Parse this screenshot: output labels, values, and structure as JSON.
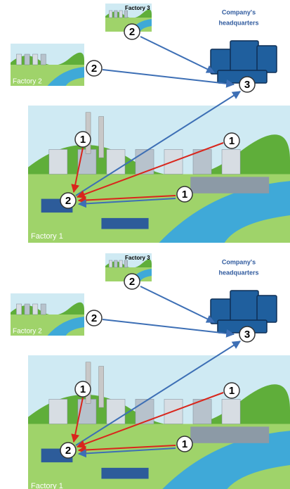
{
  "panels": [
    {
      "factory_3": "Factory 3",
      "headquarters": [
        "Company's",
        "headquarters"
      ],
      "factory_2": "Factory 2",
      "factory_1": "Factory 1",
      "markers": [
        "2",
        "3",
        "2",
        "1",
        "1",
        "1",
        "2"
      ]
    },
    {
      "factory_3": "Factory 3",
      "headquarters": [
        "Company's",
        "headquarters"
      ],
      "factory_2": "Factory 2",
      "factory_1": "Factory 1",
      "markers": [
        "2",
        "3",
        "2",
        "1",
        "1",
        "1",
        "2"
      ]
    }
  ]
}
